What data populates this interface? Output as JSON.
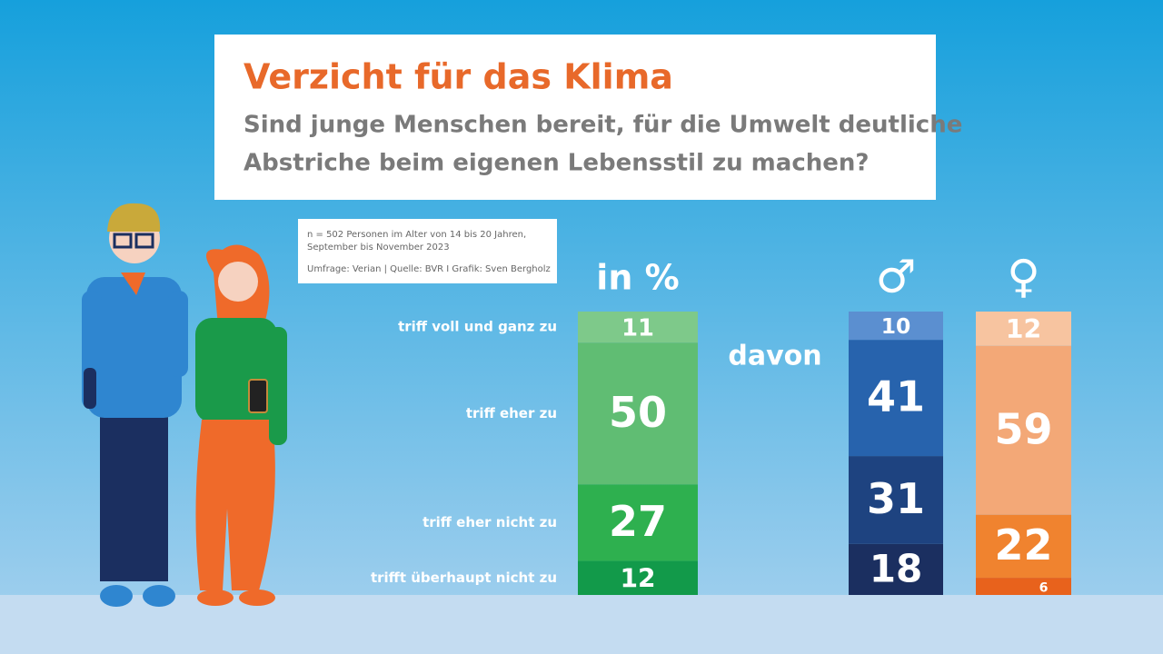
{
  "chart_data": {
    "type": "stacked_column",
    "title": "Verzicht für das Klima",
    "subtitle": [
      "Sind junge Menschen bereit, für die Umwelt deutliche",
      "Abstriche beim eigenen Lebensstil zu machen?"
    ],
    "note": [
      "n = 502 Personen im Alter von 14 bis 20 Jahren,",
      "September bis November 2023",
      "Umfrage: Verian | Quelle: BVR I Grafik: Sven Bergholz"
    ],
    "breakdown_label": "davon",
    "categories": [
      "triff voll und ganz zu",
      "triff eher zu",
      "triff eher nicht zu",
      "trifft überhaupt nicht zu"
    ],
    "series": [
      {
        "name": "in %",
        "colors": [
          "#7ec98a",
          "#60bd73",
          "#2eb04f",
          "#129a4a"
        ],
        "values": [
          11,
          50,
          27,
          12
        ]
      },
      {
        "name": "♂",
        "colors": [
          "#5b8fd0",
          "#2763ad",
          "#1e4380",
          "#1b2f60"
        ],
        "values": [
          10,
          41,
          31,
          18
        ]
      },
      {
        "name": "♀",
        "colors": [
          "#f7c4a0",
          "#f3a877",
          "#f0832f",
          "#e8621c"
        ],
        "values": [
          12,
          59,
          22,
          6
        ]
      }
    ]
  }
}
